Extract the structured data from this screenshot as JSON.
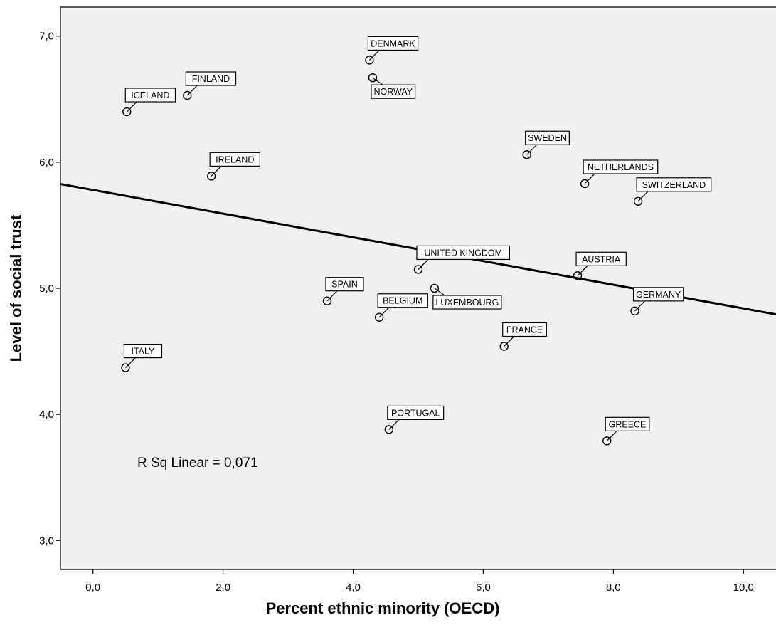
{
  "chart_data": {
    "type": "scatter",
    "xlabel": "Percent ethnic minority (OECD)",
    "ylabel": "Level of social trust",
    "xlim": [
      -0.5,
      10.5
    ],
    "ylim": [
      2.77,
      7.23
    ],
    "x_ticks": [
      "0,0",
      "2,0",
      "4,0",
      "6,0",
      "8,0",
      "10,0"
    ],
    "x_tick_values": [
      0,
      2,
      4,
      6,
      8,
      10
    ],
    "y_ticks": [
      "3,0",
      "4,0",
      "5,0",
      "6,0",
      "7,0"
    ],
    "y_tick_values": [
      3,
      4,
      5,
      6,
      7
    ],
    "grid": false,
    "background_color": "#f0f0f0",
    "annotation": "R Sq Linear = 0,071",
    "fit_line": {
      "intercept": 5.78,
      "slope": -0.094
    },
    "points": [
      {
        "label": "DENMARK",
        "x": 4.25,
        "y": 6.81,
        "label_pos": "above"
      },
      {
        "label": "NORWAY",
        "x": 4.3,
        "y": 6.67,
        "label_pos": "below"
      },
      {
        "label": "FINLAND",
        "x": 1.45,
        "y": 6.53,
        "label_pos": "above"
      },
      {
        "label": "ICELAND",
        "x": 0.52,
        "y": 6.4,
        "label_pos": "above"
      },
      {
        "label": "IRELAND",
        "x": 1.82,
        "y": 5.89,
        "label_pos": "above"
      },
      {
        "label": "SWEDEN",
        "x": 6.67,
        "y": 6.06,
        "label_pos": "above"
      },
      {
        "label": "NETHERLANDS",
        "x": 7.56,
        "y": 5.83,
        "label_pos": "above"
      },
      {
        "label": "SWITZERLAND",
        "x": 8.38,
        "y": 5.69,
        "label_pos": "above"
      },
      {
        "label": "UNITED KINGDOM",
        "x": 5.0,
        "y": 5.15,
        "label_pos": "above"
      },
      {
        "label": "AUSTRIA",
        "x": 7.45,
        "y": 5.1,
        "label_pos": "above"
      },
      {
        "label": "LUXEMBOURG",
        "x": 5.25,
        "y": 5.0,
        "label_pos": "below"
      },
      {
        "label": "SPAIN",
        "x": 3.6,
        "y": 4.9,
        "label_pos": "above"
      },
      {
        "label": "BELGIUM",
        "x": 4.4,
        "y": 4.77,
        "label_pos": "above"
      },
      {
        "label": "GERMANY",
        "x": 8.33,
        "y": 4.82,
        "label_pos": "above"
      },
      {
        "label": "FRANCE",
        "x": 6.32,
        "y": 4.54,
        "label_pos": "above"
      },
      {
        "label": "ITALY",
        "x": 0.5,
        "y": 4.37,
        "label_pos": "above"
      },
      {
        "label": "PORTUGAL",
        "x": 4.55,
        "y": 3.88,
        "label_pos": "above"
      },
      {
        "label": "GREECE",
        "x": 7.9,
        "y": 3.79,
        "label_pos": "above"
      }
    ]
  }
}
